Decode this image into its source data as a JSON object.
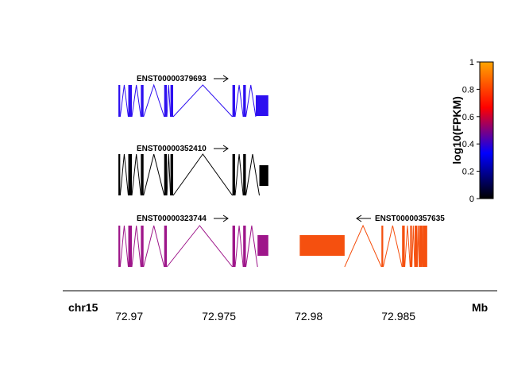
{
  "chart_data": {
    "type": "gene-track",
    "chromosome": "chr15",
    "unit": "Mb",
    "xlim": [
      72.9663,
      72.9905
    ],
    "x_ticks": [
      72.97,
      72.975,
      72.98,
      72.985
    ],
    "x_tick_labels": [
      "72.97",
      "72.975",
      "72.98",
      "72.985"
    ],
    "colorbar": {
      "title": "log10(FPKM)",
      "range": [
        0,
        1
      ],
      "ticks": [
        0,
        0.2,
        0.4,
        0.6,
        0.8,
        1
      ],
      "tick_labels": [
        "0",
        "0.2",
        "0.4",
        "0.6",
        "0.8",
        "1"
      ],
      "colors": [
        "#000000",
        "#0000ff",
        "#ff0000",
        "#ffa500"
      ]
    },
    "transcripts": [
      {
        "id": "ENST00000379693",
        "strand": "+",
        "row": 0,
        "color": "#2d0ff0",
        "exons": [
          [
            72.9694,
            72.9695
          ],
          [
            72.96995,
            72.97015
          ],
          [
            72.97065,
            72.9708
          ],
          [
            72.97195,
            72.9721
          ],
          [
            72.9723,
            72.97245
          ],
          [
            72.97575,
            72.9759
          ],
          [
            72.97635,
            72.9765
          ],
          [
            72.97705,
            72.97775
          ]
        ]
      },
      {
        "id": "ENST00000352410",
        "strand": "+",
        "row": 1,
        "color": "#000000",
        "exons": [
          [
            72.9694,
            72.9695
          ],
          [
            72.96995,
            72.97015
          ],
          [
            72.97065,
            72.9708
          ],
          [
            72.97195,
            72.9721
          ],
          [
            72.9723,
            72.97245
          ],
          [
            72.97575,
            72.9759
          ],
          [
            72.97635,
            72.9765
          ],
          [
            72.97725,
            72.97775
          ]
        ]
      },
      {
        "id": "ENST00000323744",
        "strand": "+",
        "row": 2,
        "color": "#9e168a",
        "exons": [
          [
            72.9694,
            72.9695
          ],
          [
            72.96995,
            72.97015
          ],
          [
            72.97065,
            72.9708
          ],
          [
            72.97195,
            72.9721
          ],
          [
            72.97575,
            72.9759
          ],
          [
            72.97635,
            72.9765
          ],
          [
            72.97715,
            72.97775
          ]
        ]
      },
      {
        "id": "ENST00000357635",
        "strand": "-",
        "row": 2,
        "color": "#f5500f",
        "exons": [
          [
            72.9795,
            72.982
          ],
          [
            72.98405,
            72.98415
          ],
          [
            72.9852,
            72.98535
          ],
          [
            72.98565,
            72.98575
          ],
          [
            72.9859,
            72.98605
          ],
          [
            72.98615,
            72.9863
          ],
          [
            72.98635,
            72.9866
          ]
        ]
      }
    ]
  }
}
